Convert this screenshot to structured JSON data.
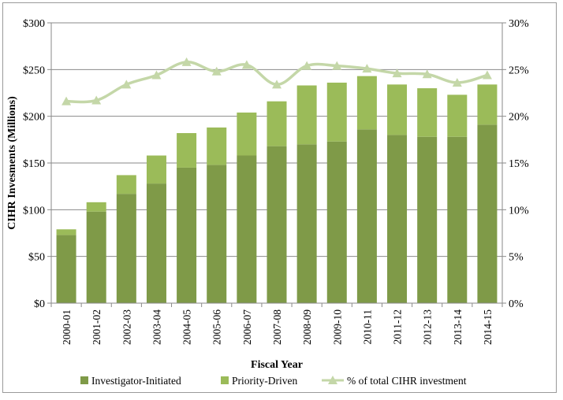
{
  "chart_data": {
    "type": "bar",
    "stacked": true,
    "title": "",
    "xlabel": "Fiscal Year",
    "ylabel": "CIHR Invesments (Millions)",
    "ylim": [
      0,
      300
    ],
    "y_ticks": [
      "$0",
      "$50",
      "$100",
      "$150",
      "$200",
      "$250",
      "$300"
    ],
    "y2lim": [
      0,
      30
    ],
    "y2_ticks": [
      "0%",
      "5%",
      "10%",
      "15%",
      "20%",
      "25%",
      "30%"
    ],
    "grid": true,
    "legend_position": "bottom",
    "categories": [
      "2000-01",
      "2001-02",
      "2002-03",
      "2003-04",
      "2004-05",
      "2005-06",
      "2006-07",
      "2007-08",
      "2008-09",
      "2009-10",
      "2010-11",
      "2011-12",
      "2012-13",
      "2013-14",
      "2014-15"
    ],
    "series": [
      {
        "name": "Investigator-Initiated",
        "type": "bar",
        "axis": "left",
        "color": "#7f9a48",
        "values": [
          73,
          98,
          117,
          128,
          145,
          148,
          158,
          168,
          170,
          173,
          186,
          180,
          178,
          178,
          191
        ]
      },
      {
        "name": "Priority-Driven",
        "type": "bar",
        "axis": "left",
        "color": "#9bbb59",
        "values": [
          6,
          10,
          20,
          30,
          37,
          40,
          46,
          48,
          63,
          63,
          57,
          54,
          52,
          45,
          43
        ]
      },
      {
        "name": "% of total CIHR investment",
        "type": "line",
        "axis": "right",
        "color": "#c4d7a8",
        "values": [
          21.6,
          21.7,
          23.4,
          24.4,
          25.8,
          24.8,
          25.5,
          23.4,
          25.4,
          25.4,
          25.1,
          24.6,
          24.5,
          23.6,
          24.4
        ]
      }
    ]
  }
}
